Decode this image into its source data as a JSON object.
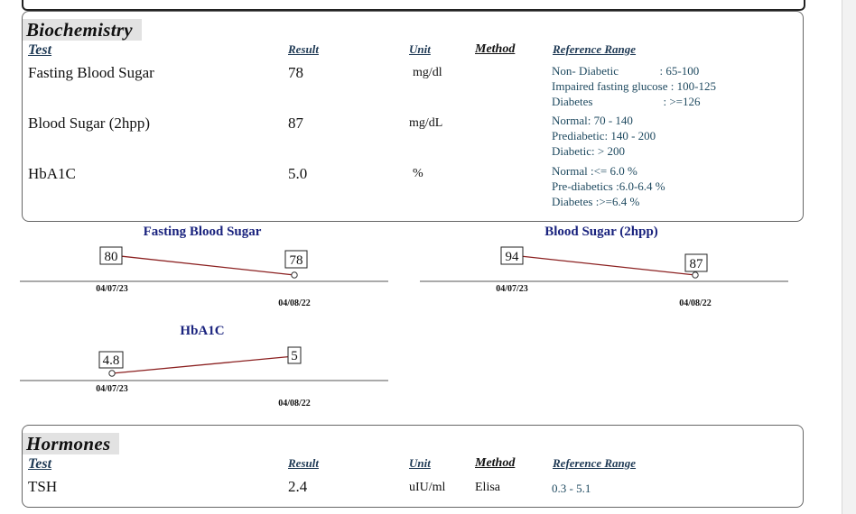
{
  "biochemistry": {
    "title": "Biochemistry",
    "headers": {
      "test": "Test",
      "result": "Result",
      "unit": "Unit",
      "method": "Method",
      "reference": "Reference Range"
    },
    "rows": [
      {
        "test": "Fasting Blood Sugar",
        "result": "78",
        "unit": "mg/dl",
        "reference": [
          "Non- Diabetic              : 65-100",
          "Impaired fasting glucose : 100-125",
          "Diabetes                        : >=126"
        ]
      },
      {
        "test": "Blood Sugar (2hpp)",
        "result": "87",
        "unit": "mg/dL",
        "reference": [
          "Normal: 70 - 140",
          "Prediabetic: 140 - 200",
          "Diabetic: > 200"
        ]
      },
      {
        "test": "HbA1C",
        "result": "5.0",
        "unit": "%",
        "reference": [
          "Normal :<= 6.0 %",
          "Pre-diabetics :6.0-6.4 %",
          "Diabetes :>=6.4 %"
        ]
      }
    ]
  },
  "chart_data": [
    {
      "type": "line",
      "title": "Fasting Blood Sugar",
      "x": [
        "04/07/23",
        "04/08/22"
      ],
      "values": [
        80,
        78
      ],
      "line_color": "#8b2020"
    },
    {
      "type": "line",
      "title": "Blood Sugar (2hpp)",
      "x": [
        "04/07/23",
        "04/08/22"
      ],
      "values": [
        94,
        87
      ],
      "line_color": "#8b2020"
    },
    {
      "type": "line",
      "title": "HbA1C",
      "x": [
        "04/07/23",
        "04/08/22"
      ],
      "values": [
        "4.8",
        "5"
      ],
      "line_color": "#8b2020"
    }
  ],
  "hormones": {
    "title": "Hormones",
    "headers": {
      "test": "Test",
      "result": "Result",
      "unit": "Unit",
      "method": "Method",
      "reference": "Reference Range"
    },
    "rows": [
      {
        "test": "TSH",
        "result": "2.4",
        "unit": "uIU/ml",
        "method": "Elisa",
        "reference": "0.3 - 5.1"
      }
    ]
  }
}
